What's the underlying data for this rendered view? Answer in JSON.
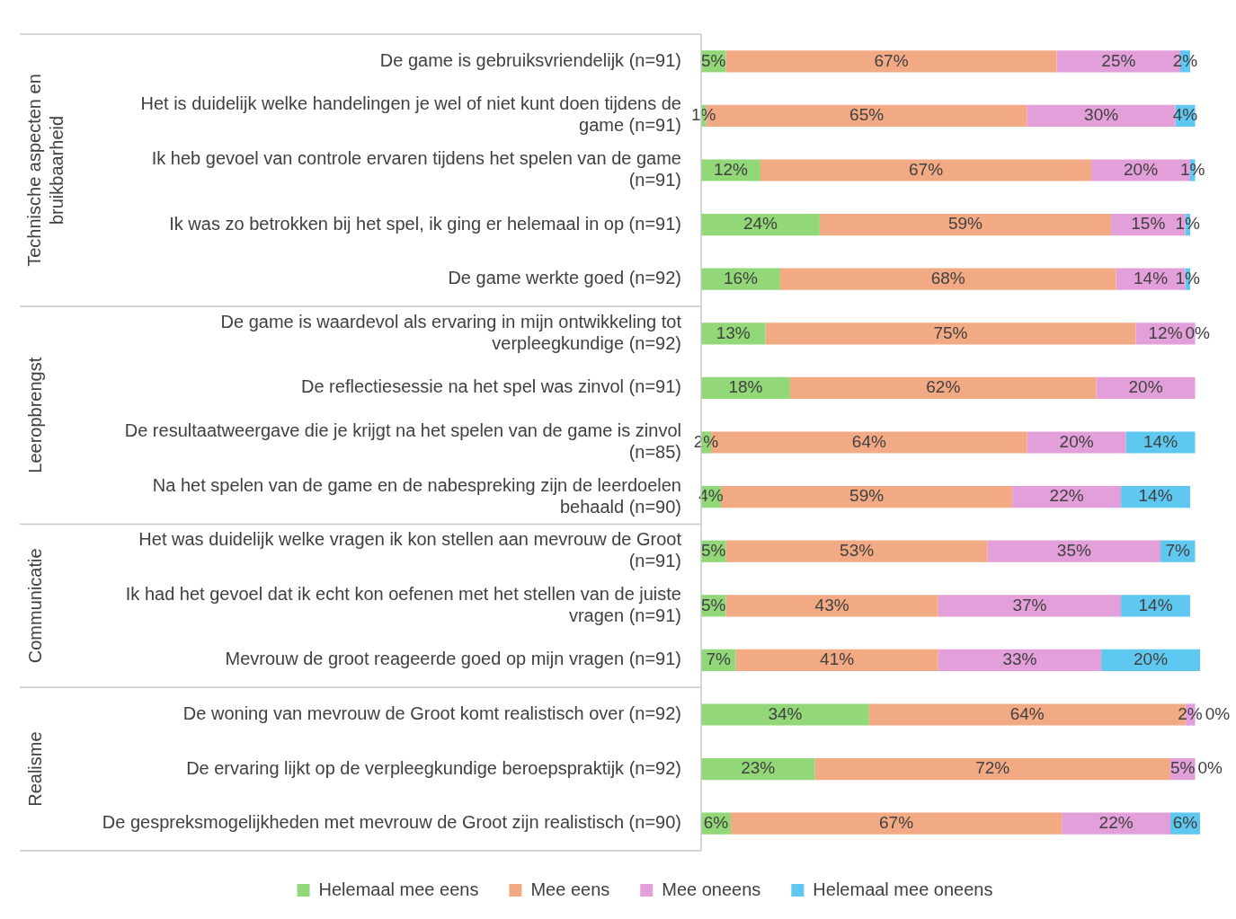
{
  "chart_data": {
    "type": "bar",
    "orientation": "horizontal",
    "stacked": true,
    "legend": "bottom",
    "categories": [
      "De game is gebruiksvriendelijk (n=91)",
      "Het is duidelijk welke handelingen je wel of niet kunt doen tijdens de game (n=91)",
      "Ik heb gevoel van controle ervaren tijdens het spelen van de game (n=91)",
      "Ik was zo betrokken bij het spel, ik ging er helemaal in op (n=91)",
      "De game werkte goed (n=92)",
      "De game is waardevol als ervaring in mijn ontwikkeling tot verpleegkundige (n=92)",
      "De reflectiesessie na het spel was zinvol (n=91)",
      "De resultaatweergave die je krijgt na het spelen van de game is zinvol (n=85)",
      "Na het spelen van de game en de nabespreking zijn de leerdoelen behaald (n=90)",
      "Het was duidelijk welke vragen ik kon stellen aan mevrouw de Groot (n=91)",
      "Ik had het gevoel dat ik echt kon oefenen met het stellen van de juiste vragen (n=91)",
      "Mevrouw de groot reageerde goed op mijn vragen (n=91)",
      "De woning van mevrouw de Groot komt realistisch over (n=92)",
      "De ervaring lijkt op de verpleegkundige beroepspraktijk (n=92)",
      "De gespreksmogelijkheden met mevrouw de Groot zijn realistisch (n=90)"
    ],
    "series": [
      {
        "name": "Helemaal mee eens",
        "color": "#92d878",
        "values": [
          5,
          1,
          12,
          24,
          16,
          13,
          18,
          2,
          4,
          5,
          5,
          7,
          34,
          23,
          6
        ],
        "value_labels": [
          "5%",
          "1%",
          "12%",
          "24%",
          "16%",
          "13%",
          "18%",
          "2%",
          "4%",
          "5%",
          "5%",
          "7%",
          "34%",
          "23%",
          "6%"
        ]
      },
      {
        "name": "Mee eens",
        "color": "#f2aa84",
        "values": [
          67,
          65,
          67,
          59,
          68,
          75,
          62,
          64,
          59,
          53,
          43,
          41,
          64,
          72,
          67
        ],
        "value_labels": [
          "67%",
          "65%",
          "67%",
          "59%",
          "68%",
          "75%",
          "62%",
          "64%",
          "59%",
          "53%",
          "43%",
          "41%",
          "64%",
          "72%",
          "67%"
        ]
      },
      {
        "name": "Mee oneens",
        "color": "#e39fda",
        "values": [
          25,
          30,
          20,
          15,
          14,
          12,
          20,
          20,
          22,
          35,
          37,
          33,
          2,
          5,
          22
        ],
        "value_labels": [
          "25%",
          "30%",
          "20%",
          "15%",
          "14%",
          "12%",
          "20%",
          "20%",
          "22%",
          "35%",
          "37%",
          "33%",
          "2%",
          "5%",
          "22%"
        ]
      },
      {
        "name": "Helemaal mee oneens",
        "color": "#5ec8f0",
        "values": [
          2,
          4,
          1,
          1,
          1,
          0,
          null,
          14,
          14,
          7,
          14,
          20,
          0,
          0,
          6
        ],
        "value_labels": [
          "2%",
          "4%",
          "1%",
          "1%",
          "1%",
          "0%",
          null,
          "14%",
          "14%",
          "7%",
          "14%",
          "20%",
          "0%",
          "0%",
          "6%"
        ]
      }
    ],
    "annotations": [
      "Technische aspecten en bruikbaarheid",
      "Leeropbrengst",
      "Communicatie",
      "Realisme"
    ]
  }
}
